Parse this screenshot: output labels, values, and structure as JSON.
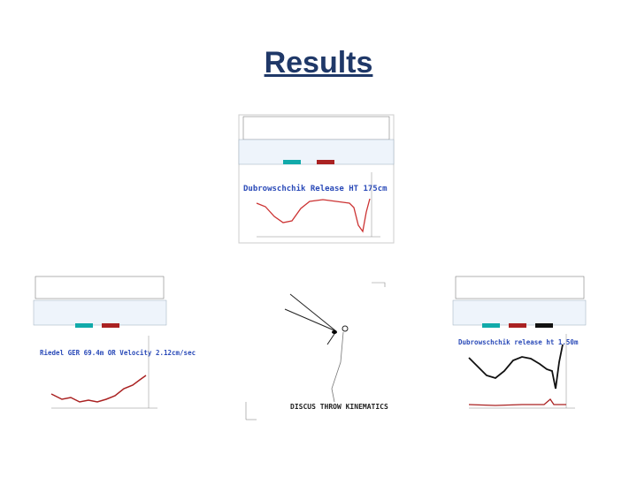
{
  "title": "Results",
  "panels": [
    {
      "caption": "Dubrowschchik Release HT 175cm"
    },
    {
      "caption": "Riedel GER 69.4m OR Velocity 2.12cm/sec"
    },
    {
      "caption": "DISCUS THROW KINEMATICS"
    },
    {
      "caption": "Dubrowschchik release ht 1.50m"
    }
  ]
}
